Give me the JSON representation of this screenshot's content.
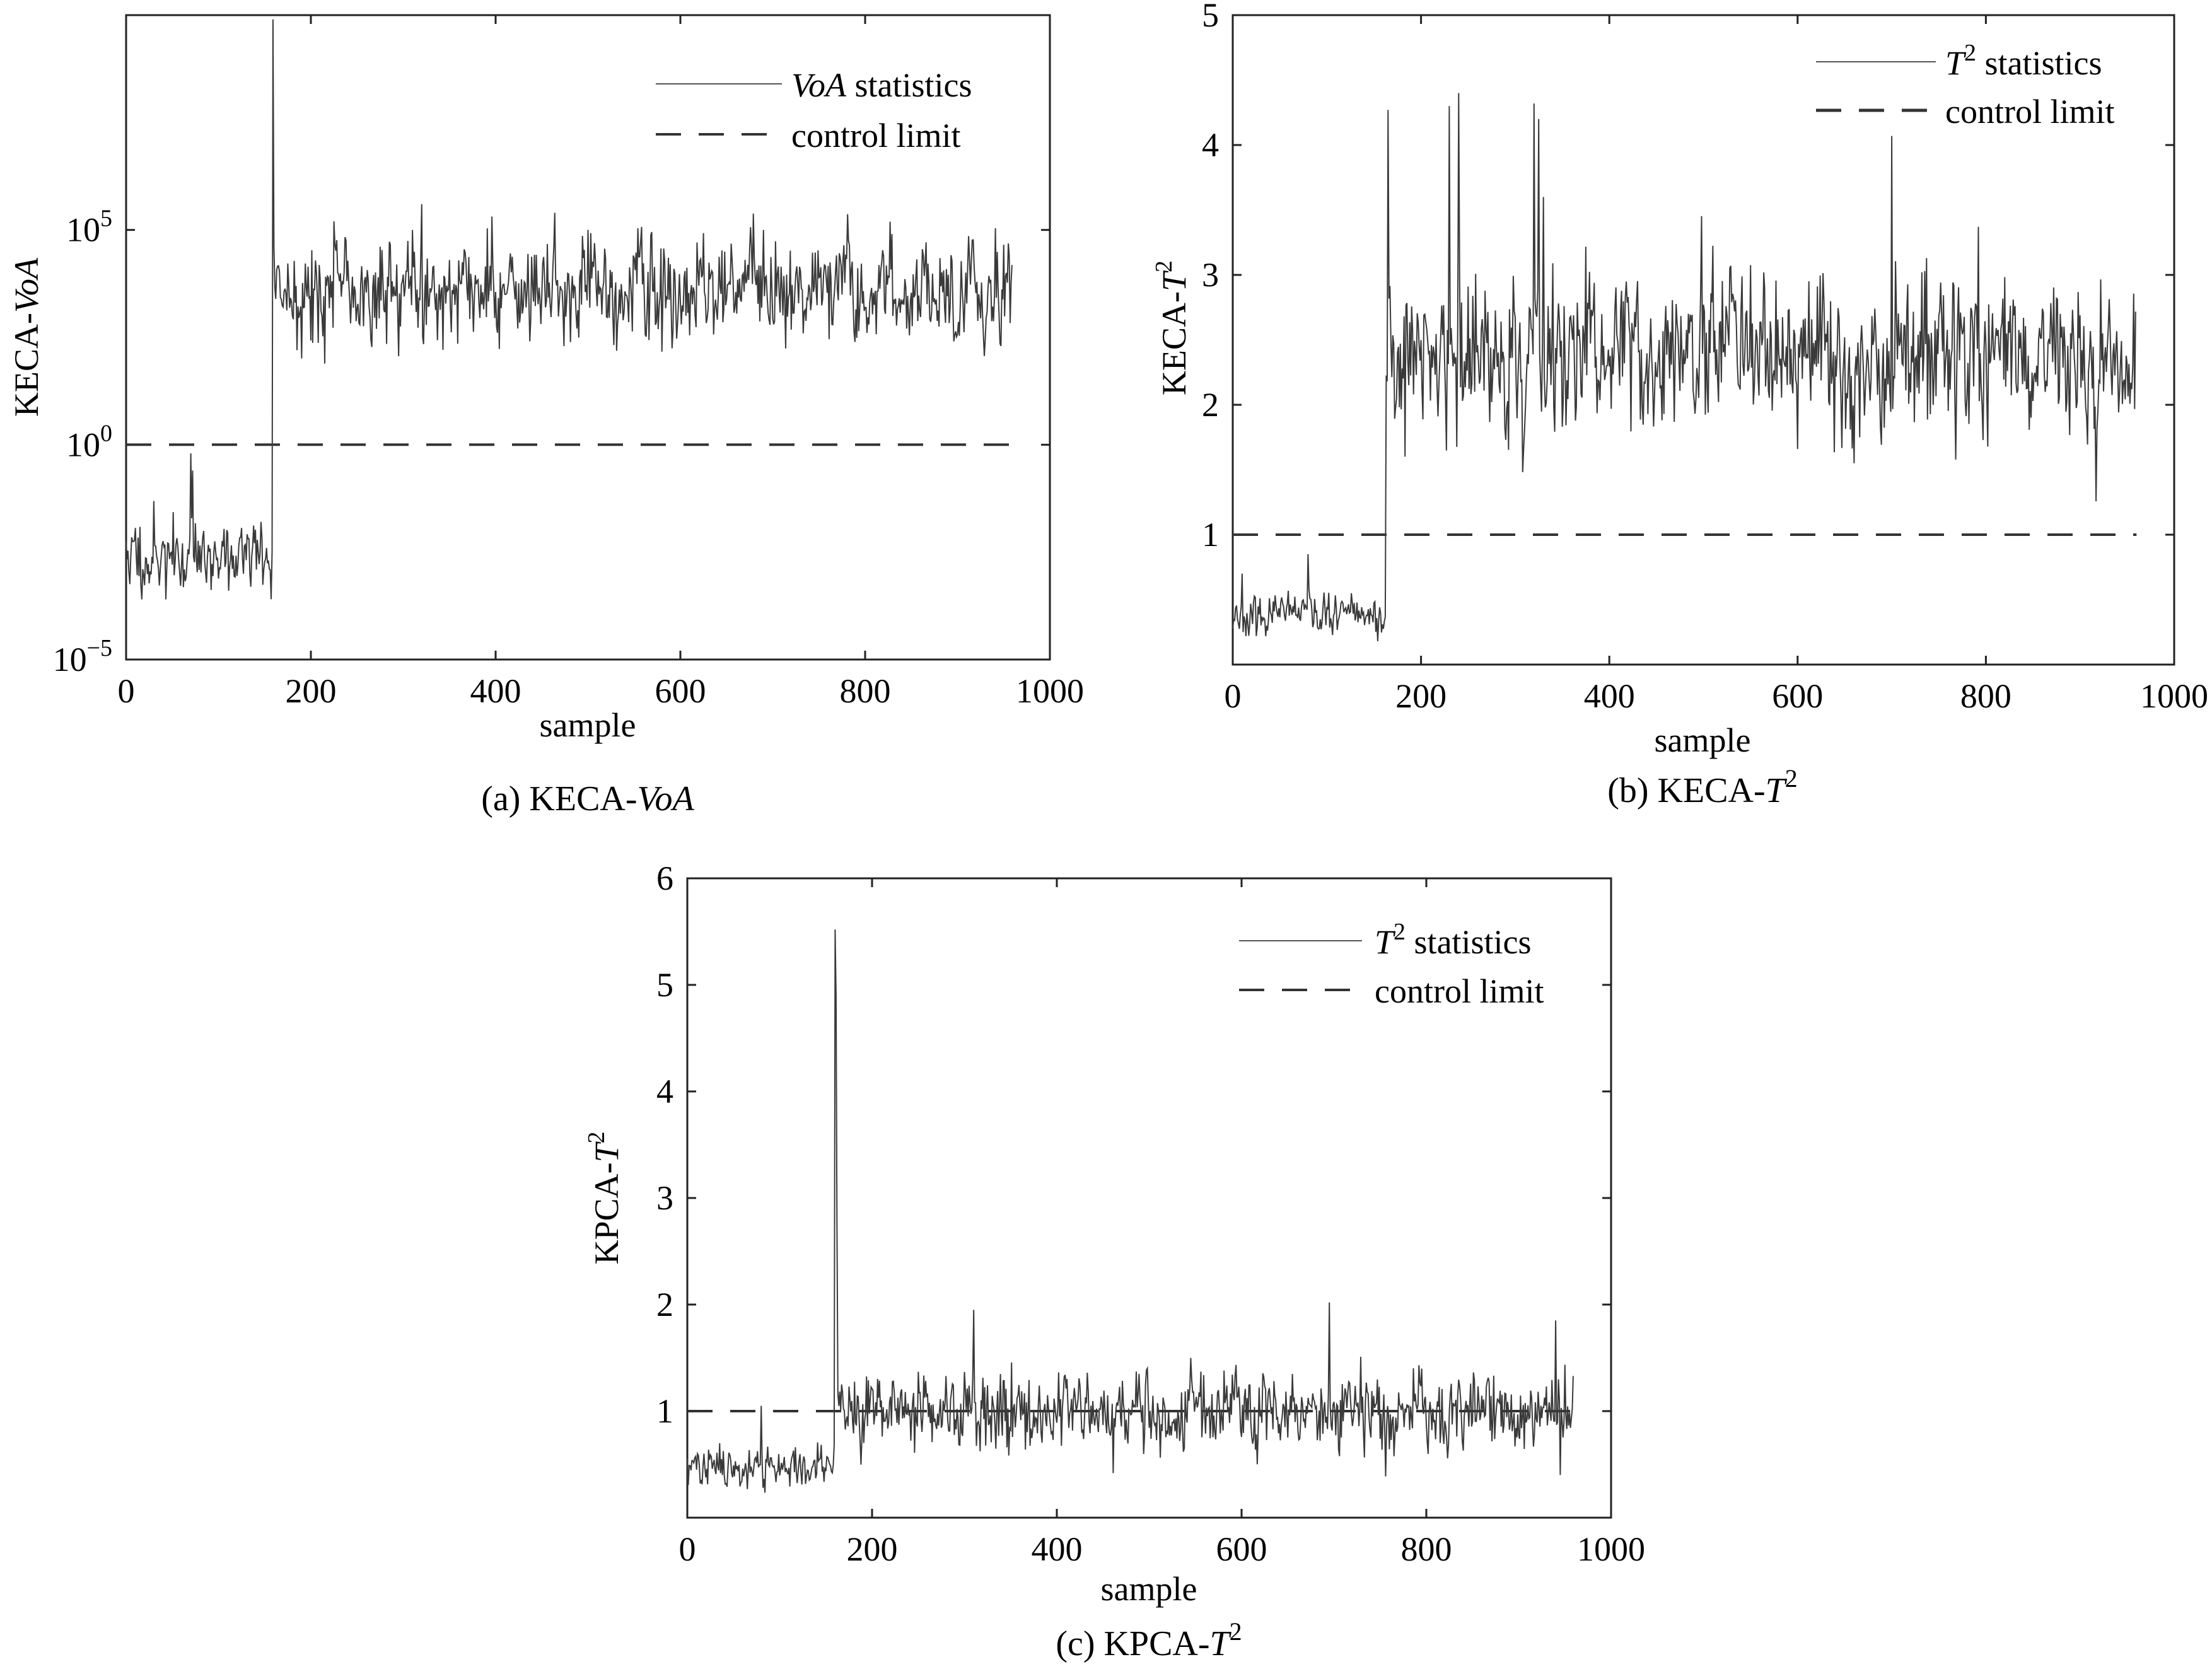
{
  "figure": {
    "panels": [
      {
        "caption_prefix": "(a) KECA-",
        "caption_math": "VoA",
        "caption_sup": "",
        "ylabel_prefix": "KECA-",
        "ylabel_math": "VoA",
        "ylabel_sup": "",
        "legend_stat_math": "VoA",
        "legend_stat_sup": "",
        "legend_stat_text": " statistics",
        "legend_limit_text": "control limit"
      },
      {
        "caption_prefix": "(b) KECA-",
        "caption_math": "T",
        "caption_sup": "2",
        "ylabel_prefix": "KECA-",
        "ylabel_math": "T",
        "ylabel_sup": "2",
        "legend_stat_math": "T",
        "legend_stat_sup": "2",
        "legend_stat_text": " statistics",
        "legend_limit_text": "control limit"
      },
      {
        "caption_prefix": "(c) KPCA-",
        "caption_math": "T",
        "caption_sup": "2",
        "ylabel_prefix": "KPCA-",
        "ylabel_math": "T",
        "ylabel_sup": "2",
        "legend_stat_math": "T",
        "legend_stat_sup": "2",
        "legend_stat_text": " statistics",
        "legend_limit_text": "control limit"
      }
    ]
  },
  "chart_data": [
    {
      "type": "line",
      "title": "(a) KECA-VoA",
      "xlabel": "sample",
      "ylabel": "KECA-VoA",
      "yscale": "log",
      "xlim": [
        0,
        1000
      ],
      "ylim_log10": [
        -5,
        10
      ],
      "xticks": [
        0,
        200,
        400,
        600,
        800,
        1000
      ],
      "yticks": [
        {
          "base": "10",
          "exp": "−5",
          "log10": -5
        },
        {
          "base": "10",
          "exp": "0",
          "log10": 0
        },
        {
          "base": "10",
          "exp": "5",
          "log10": 5
        }
      ],
      "legend_position": "top-right",
      "series": [
        {
          "name": "VoA statistics",
          "style": "solid",
          "generator": {
            "n": 960,
            "seed": 11,
            "fault_at": 160,
            "pre": {
              "mean": -2.6,
              "noise": 0.55,
              "extra": [
                [
                  70,
                  -0.2
                ],
                [
                  72,
                  -0.6
                ]
              ]
            },
            "post": {
              "mean": 3.6,
              "noise": 0.75,
              "extra": [
                [
                  159,
                  9.9
                ],
                [
                  160,
                  4.6
                ],
                [
                  320,
                  5.6
                ],
                [
                  310,
                  5.0
                ],
                [
                  225,
                  5.2
                ],
                [
                  690,
                  5.0
                ],
                [
                  500,
                  5.0
                ]
              ]
            },
            "min": -4.9
          }
        },
        {
          "name": "control limit",
          "style": "dashed",
          "values": [
            0,
            0
          ],
          "x": [
            0,
            960
          ]
        }
      ]
    },
    {
      "type": "line",
      "title": "(b) KECA-T2",
      "xlabel": "sample",
      "ylabel": "KECA-T2",
      "xlim": [
        0,
        1000
      ],
      "ylim": [
        0,
        5
      ],
      "xticks": [
        0,
        200,
        400,
        600,
        800,
        1000
      ],
      "yticks": [
        1,
        2,
        3,
        4,
        5
      ],
      "legend_position": "top-right",
      "series": [
        {
          "name": "T2 statistics",
          "style": "solid",
          "generator": {
            "n": 960,
            "seed": 23,
            "fault_at": 163,
            "pre": {
              "mean": 0.38,
              "noise": 0.09,
              "extra": [
                [
                  80,
                  0.85
                ],
                [
                  10,
                  0.7
                ]
              ]
            },
            "post": {
              "mean": 2.35,
              "noise": 0.38,
              "extra": [
                [
                  165,
                  4.27
                ],
                [
                  240,
                  4.4
                ],
                [
                  230,
                  4.3
                ],
                [
                  320,
                  4.32
                ],
                [
                  325,
                  4.2
                ],
                [
                  700,
                  4.07
                ],
                [
                  330,
                  3.6
                ]
              ]
            },
            "min": 0.12
          }
        },
        {
          "name": "control limit",
          "style": "dashed",
          "values": [
            1,
            1
          ],
          "x": [
            0,
            960
          ]
        }
      ]
    },
    {
      "type": "line",
      "title": "(c) KPCA-T2",
      "xlabel": "sample",
      "ylabel": "KPCA-T2",
      "xlim": [
        0,
        1000
      ],
      "ylim": [
        0,
        6
      ],
      "xticks": [
        0,
        200,
        400,
        600,
        800,
        1000
      ],
      "yticks": [
        1,
        2,
        3,
        4,
        5,
        6
      ],
      "legend_position": "top-right",
      "series": [
        {
          "name": "T2 statistics",
          "style": "solid",
          "generator": {
            "n": 960,
            "seed": 37,
            "fault_at": 161,
            "pre": {
              "mean": 0.48,
              "noise": 0.12,
              "extra": [
                [
                  80,
                  1.05
                ]
              ]
            },
            "post": {
              "mean": 1.0,
              "noise": 0.23,
              "extra": [
                [
                  160,
                  5.52
                ],
                [
                  161,
                  4.9
                ],
                [
                  162,
                  2.8
                ],
                [
                  310,
                  1.95
                ],
                [
                  695,
                  2.02
                ],
                [
                  940,
                  1.85
                ],
                [
                  945,
                  0.4
                ]
              ]
            },
            "min": 0.2
          }
        },
        {
          "name": "control limit",
          "style": "dashed",
          "values": [
            1,
            1
          ],
          "x": [
            0,
            960
          ]
        }
      ]
    }
  ]
}
